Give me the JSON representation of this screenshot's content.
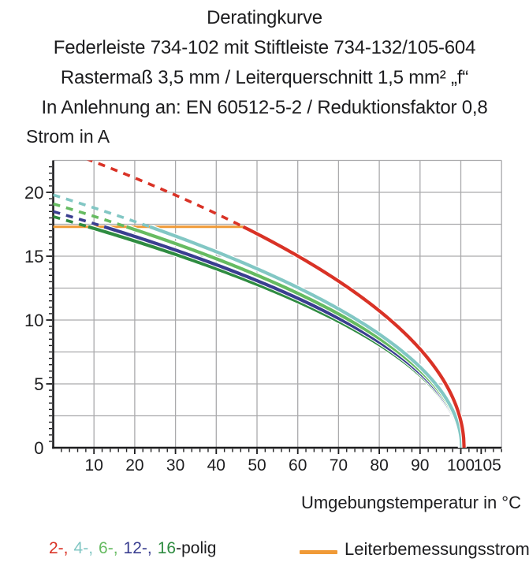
{
  "title": {
    "line1": "Deratingkurve",
    "line2": "Federleiste 734-102 mit Stiftleiste 734-132/105-604",
    "line3": "Rastermaß 3,5 mm / Leiterquerschnitt 1,5 mm² „f“",
    "line4": "In Anlehnung an: EN 60512-5-2 / Reduktionsfaktor 0,8"
  },
  "colors": {
    "red": "#d93226",
    "cyan": "#82c7c4",
    "light_green": "#66bb61",
    "dark_blue": "#3a3e90",
    "dark_green": "#2f8c41",
    "orange": "#f09a37",
    "grid": "#aaaaac",
    "axis": "#1d1d1f",
    "background": "#ffffff"
  },
  "chart_data": {
    "type": "line",
    "title": "Deratingkurve",
    "xlabel": "Umgebungstemperatur in °C",
    "ylabel": "Strom in A",
    "xlim": [
      0,
      110
    ],
    "ylim": [
      0,
      22.5
    ],
    "x_ticks": [
      10,
      20,
      30,
      40,
      50,
      60,
      70,
      80,
      90,
      100,
      105
    ],
    "x_minor_step": 2,
    "y_ticks": [
      0,
      5,
      10,
      15,
      20
    ],
    "y_minor_step": 0.5,
    "grid": {
      "x_step": 10,
      "y_step": 2.5,
      "on": true
    },
    "reference_line": {
      "name": "Leiterbemessungsstrom",
      "value": 17.3,
      "x_start": 0,
      "x_end": 46.6,
      "color": "#f09a37",
      "style": "solid-horizontal"
    },
    "series_note": "Derating curves I(T) = i0 * sqrt(1 - T/t_end); dashed above Leiterbemessungsstrom (17.3 A), solid below; all curves fall to 0 A near 100 °C",
    "series": [
      {
        "name": "2-polig",
        "color": "#d93226",
        "i0": 23.6,
        "t_end": 100.8,
        "t_start": 8,
        "t_solid_from": 46.6,
        "points": [
          [
            10,
            22.4
          ],
          [
            15,
            21.8
          ],
          [
            20,
            21.1
          ],
          [
            25,
            20.5
          ],
          [
            30,
            19.8
          ],
          [
            35,
            19.1
          ],
          [
            40,
            18.3
          ],
          [
            45,
            17.6
          ],
          [
            50,
            16.8
          ],
          [
            55,
            15.9
          ],
          [
            60,
            15.0
          ],
          [
            65,
            14.0
          ],
          [
            70,
            13.0
          ],
          [
            75,
            11.9
          ],
          [
            80,
            10.7
          ],
          [
            85,
            9.3
          ],
          [
            90,
            7.7
          ],
          [
            95,
            5.9
          ],
          [
            100,
            2.1
          ],
          [
            100.8,
            0
          ]
        ]
      },
      {
        "name": "4-polig",
        "color": "#82c7c4",
        "i0": 19.8,
        "t_end": 100.2,
        "t_start": 0,
        "t_solid_from": 23.7,
        "points": [
          [
            0,
            19.8
          ],
          [
            5,
            19.3
          ],
          [
            10,
            18.8
          ],
          [
            15,
            18.3
          ],
          [
            20,
            17.7
          ],
          [
            25,
            17.1
          ],
          [
            30,
            16.6
          ],
          [
            35,
            15.9
          ],
          [
            40,
            15.3
          ],
          [
            45,
            14.6
          ],
          [
            50,
            13.9
          ],
          [
            55,
            13.2
          ],
          [
            60,
            12.4
          ],
          [
            65,
            11.5
          ],
          [
            70,
            10.6
          ],
          [
            75,
            9.6
          ],
          [
            80,
            8.5
          ],
          [
            85,
            7.2
          ],
          [
            90,
            5.6
          ],
          [
            95,
            3.2
          ],
          [
            100.2,
            0
          ]
        ]
      },
      {
        "name": "6-polig",
        "color": "#66bb61",
        "i0": 19.1,
        "t_end": 100.1,
        "t_start": 0,
        "t_solid_from": 18.0,
        "points": [
          [
            0,
            19.1
          ],
          [
            5,
            18.6
          ],
          [
            10,
            18.1
          ],
          [
            15,
            17.6
          ],
          [
            20,
            17.1
          ],
          [
            25,
            16.5
          ],
          [
            30,
            16.0
          ],
          [
            35,
            15.4
          ],
          [
            40,
            14.7
          ],
          [
            45,
            14.1
          ],
          [
            50,
            13.4
          ],
          [
            55,
            12.6
          ],
          [
            60,
            11.9
          ],
          [
            65,
            11.0
          ],
          [
            70,
            10.1
          ],
          [
            75,
            9.1
          ],
          [
            80,
            7.9
          ],
          [
            85,
            6.6
          ],
          [
            90,
            4.8
          ],
          [
            95,
            2.2
          ],
          [
            100.1,
            0
          ]
        ]
      },
      {
        "name": "12-polig",
        "color": "#3a3e90",
        "i0": 18.5,
        "t_end": 100.0,
        "t_start": 0,
        "t_solid_from": 12.5,
        "points": [
          [
            0,
            18.5
          ],
          [
            5,
            18.0
          ],
          [
            10,
            17.6
          ],
          [
            15,
            17.1
          ],
          [
            20,
            16.6
          ],
          [
            25,
            16.0
          ],
          [
            30,
            15.5
          ],
          [
            35,
            14.9
          ],
          [
            40,
            14.3
          ],
          [
            45,
            13.7
          ],
          [
            50,
            13.1
          ],
          [
            55,
            12.4
          ],
          [
            60,
            11.7
          ],
          [
            65,
            10.9
          ],
          [
            70,
            10.1
          ],
          [
            75,
            9.3
          ],
          [
            80,
            8.3
          ],
          [
            85,
            7.2
          ],
          [
            90,
            5.9
          ],
          [
            95,
            4.1
          ],
          [
            100,
            0
          ]
        ]
      },
      {
        "name": "16-polig",
        "color": "#2f8c41",
        "i0": 18.1,
        "t_end": 99.9,
        "t_start": 0,
        "t_solid_from": 8.6,
        "points": [
          [
            0,
            18.1
          ],
          [
            5,
            17.6
          ],
          [
            10,
            17.2
          ],
          [
            15,
            16.7
          ],
          [
            20,
            16.2
          ],
          [
            25,
            15.7
          ],
          [
            30,
            15.1
          ],
          [
            35,
            14.6
          ],
          [
            40,
            14.0
          ],
          [
            45,
            13.4
          ],
          [
            50,
            12.8
          ],
          [
            55,
            12.1
          ],
          [
            60,
            11.4
          ],
          [
            65,
            10.7
          ],
          [
            70,
            9.9
          ],
          [
            75,
            9.0
          ],
          [
            80,
            8.1
          ],
          [
            85,
            7.0
          ],
          [
            90,
            5.7
          ],
          [
            95,
            4.0
          ],
          [
            99.9,
            0
          ]
        ]
      }
    ],
    "legend_position": "bottom"
  },
  "legend": {
    "poles": [
      {
        "label": "2-,",
        "color": "#d93226"
      },
      {
        "label": "4-,",
        "color": "#82c7c4"
      },
      {
        "label": "6-,",
        "color": "#66bb61"
      },
      {
        "label": "12-,",
        "color": "#3a3e90"
      },
      {
        "label": "16",
        "color": "#2f8c41"
      }
    ],
    "poles_suffix": "-polig",
    "reference_label": "Leiterbemessungsstrom"
  }
}
